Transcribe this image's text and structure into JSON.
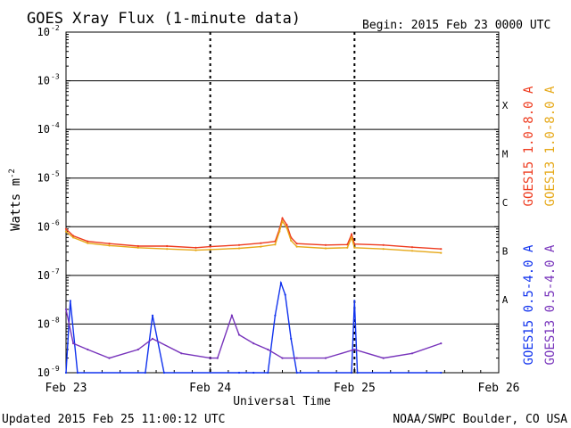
{
  "chart_data": {
    "type": "line",
    "title": "GOES Xray Flux (1-minute data)",
    "begin_label": "Begin:  2015 Feb 23 0000 UTC",
    "ylabel": "Watts m",
    "ylabel_sup": "-2",
    "xlabel": "Universal Time",
    "updated": "Updated 2015 Feb 25 11:00:12 UTC",
    "source": "NOAA/SWPC Boulder, CO USA",
    "y_scale": "log",
    "ylim": [
      1e-09,
      0.01
    ],
    "y_ticks": [
      {
        "value": 1e-09,
        "label": "10",
        "exp": "-9"
      },
      {
        "value": 1e-08,
        "label": "10",
        "exp": "-8"
      },
      {
        "value": 1e-07,
        "label": "10",
        "exp": "-7"
      },
      {
        "value": 1e-06,
        "label": "10",
        "exp": "-6"
      },
      {
        "value": 1e-05,
        "label": "10",
        "exp": "-5"
      },
      {
        "value": 0.0001,
        "label": "10",
        "exp": "-4"
      },
      {
        "value": 0.001,
        "label": "10",
        "exp": "-3"
      },
      {
        "value": 0.01,
        "label": "10",
        "exp": "-2"
      }
    ],
    "x_ticks": [
      {
        "day": 0,
        "label": "Feb 23"
      },
      {
        "day": 1,
        "label": "Feb 24"
      },
      {
        "day": 2,
        "label": "Feb 25"
      },
      {
        "day": 3,
        "label": "Feb 26"
      }
    ],
    "xlim_days": [
      0,
      3
    ],
    "flare_classes": [
      {
        "label": "X",
        "value": 0.0001
      },
      {
        "label": "M",
        "value": 1e-05
      },
      {
        "label": "C",
        "value": 1e-06
      },
      {
        "label": "B",
        "value": 1e-07
      },
      {
        "label": "A",
        "value": 1e-08
      }
    ],
    "grid": "horizontal lines at each decade from 1e-8 to 1e-3; dashed verticals at day boundaries",
    "legend_placement": "right, vertical",
    "series": [
      {
        "name": "GOES15 1.0-8.0 A",
        "color": "#ee3b1f",
        "legend_group": "long",
        "points": [
          [
            0,
            9e-07
          ],
          [
            0.05,
            6.5e-07
          ],
          [
            0.15,
            5e-07
          ],
          [
            0.3,
            4.5e-07
          ],
          [
            0.5,
            4e-07
          ],
          [
            0.7,
            4e-07
          ],
          [
            0.9,
            3.7e-07
          ],
          [
            1.0,
            3.9e-07
          ],
          [
            1.2,
            4.2e-07
          ],
          [
            1.35,
            4.6e-07
          ],
          [
            1.45,
            5e-07
          ],
          [
            1.48,
            9e-07
          ],
          [
            1.5,
            1.5e-06
          ],
          [
            1.53,
            1.1e-06
          ],
          [
            1.56,
            6e-07
          ],
          [
            1.6,
            4.5e-07
          ],
          [
            1.8,
            4.2e-07
          ],
          [
            1.95,
            4.3e-07
          ],
          [
            1.98,
            7e-07
          ],
          [
            2.0,
            4.4e-07
          ],
          [
            2.2,
            4.2e-07
          ],
          [
            2.4,
            3.8e-07
          ],
          [
            2.6,
            3.5e-07
          ]
        ]
      },
      {
        "name": "GOES13 1.0-8.0 A",
        "color": "#e6a817",
        "legend_group": "long",
        "points": [
          [
            0,
            8e-07
          ],
          [
            0.05,
            6e-07
          ],
          [
            0.15,
            4.6e-07
          ],
          [
            0.3,
            4.1e-07
          ],
          [
            0.5,
            3.7e-07
          ],
          [
            0.7,
            3.5e-07
          ],
          [
            0.9,
            3.3e-07
          ],
          [
            1.0,
            3.4e-07
          ],
          [
            1.2,
            3.6e-07
          ],
          [
            1.35,
            3.9e-07
          ],
          [
            1.45,
            4.3e-07
          ],
          [
            1.48,
            8e-07
          ],
          [
            1.5,
            1.3e-06
          ],
          [
            1.53,
            9.5e-07
          ],
          [
            1.56,
            5.2e-07
          ],
          [
            1.6,
            3.9e-07
          ],
          [
            1.8,
            3.6e-07
          ],
          [
            1.95,
            3.7e-07
          ],
          [
            1.98,
            6e-07
          ],
          [
            2.0,
            3.7e-07
          ],
          [
            2.2,
            3.5e-07
          ],
          [
            2.4,
            3.2e-07
          ],
          [
            2.6,
            2.9e-07
          ]
        ]
      },
      {
        "name": "GOES15 0.5-4.0 A",
        "color": "#1133ee",
        "legend_group": "short",
        "points": [
          [
            0,
            1e-09
          ],
          [
            0.03,
            3e-08
          ],
          [
            0.08,
            1e-09
          ],
          [
            0.55,
            1e-09
          ],
          [
            0.6,
            1.5e-08
          ],
          [
            0.68,
            1e-09
          ],
          [
            1.2,
            1e-09
          ],
          [
            1.3,
            1e-09
          ],
          [
            1.4,
            1e-09
          ],
          [
            1.45,
            1.5e-08
          ],
          [
            1.49,
            7e-08
          ],
          [
            1.52,
            4e-08
          ],
          [
            1.56,
            5e-09
          ],
          [
            1.6,
            1e-09
          ],
          [
            1.98,
            1e-09
          ],
          [
            2.0,
            3e-08
          ],
          [
            2.02,
            1e-09
          ],
          [
            2.6,
            1e-09
          ]
        ]
      },
      {
        "name": "GOES13 0.5-4.0 A",
        "color": "#7733bb",
        "legend_group": "short",
        "points": [
          [
            0,
            2e-08
          ],
          [
            0.05,
            4e-09
          ],
          [
            0.15,
            3e-09
          ],
          [
            0.3,
            2e-09
          ],
          [
            0.5,
            3e-09
          ],
          [
            0.6,
            5e-09
          ],
          [
            0.8,
            2.5e-09
          ],
          [
            1.0,
            2e-09
          ],
          [
            1.05,
            2e-09
          ],
          [
            1.15,
            1.5e-08
          ],
          [
            1.2,
            6e-09
          ],
          [
            1.3,
            4e-09
          ],
          [
            1.4,
            3e-09
          ],
          [
            1.5,
            2e-09
          ],
          [
            1.6,
            2e-09
          ],
          [
            1.8,
            2e-09
          ],
          [
            2.0,
            3e-09
          ],
          [
            2.2,
            2e-09
          ],
          [
            2.4,
            2.5e-09
          ],
          [
            2.6,
            4e-09
          ]
        ]
      }
    ]
  }
}
